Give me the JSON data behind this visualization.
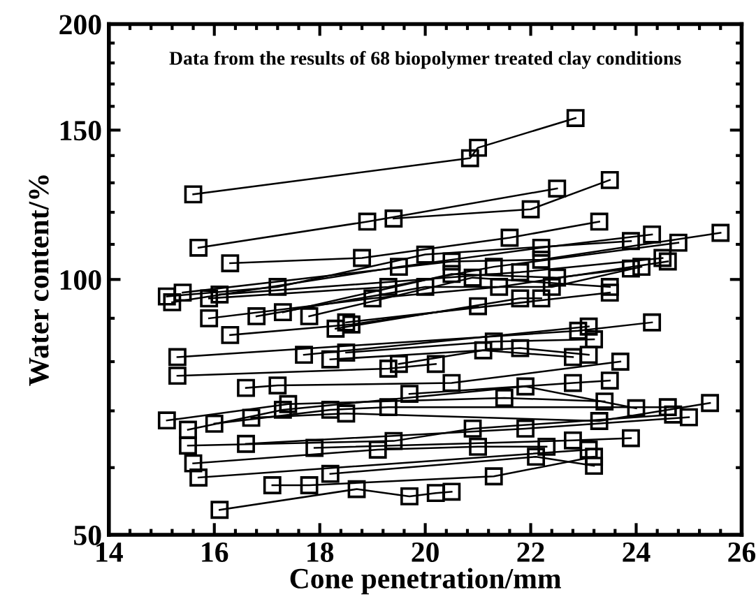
{
  "chart_data": {
    "type": "line",
    "xlabel": "Cone penetration/mm",
    "ylabel": "Water content/%",
    "annotations": [
      "Data from the results of 68 biopolymer treated clay conditions"
    ],
    "log": "y",
    "xlim": [
      14,
      26
    ],
    "xticks": [
      14,
      16,
      18,
      20,
      22,
      24,
      26
    ],
    "ylim": [
      50,
      200
    ],
    "yticks": [
      50,
      100,
      150,
      200
    ],
    "marker": "square",
    "line_style": "solid",
    "grid": false,
    "series": [
      {
        "color": "#000000",
        "x": [
          15.6,
          20.85,
          21.0,
          22.85
        ],
        "values": [
          126,
          139,
          143,
          155
        ]
      },
      {
        "color": "#000000",
        "x": [
          15.7,
          18.9,
          22.5
        ],
        "values": [
          109,
          117,
          128
        ]
      },
      {
        "color": "#000000",
        "x": [
          19.4,
          22.0,
          23.5
        ],
        "values": [
          118,
          121,
          131
        ]
      },
      {
        "color": "#000000",
        "x": [
          16.3,
          18.8,
          21.6,
          23.3
        ],
        "values": [
          104.5,
          106,
          112,
          117
        ]
      },
      {
        "color": "#000000",
        "x": [
          15.1,
          17.2,
          20.0,
          23.9
        ],
        "values": [
          95.5,
          98,
          107,
          111
        ]
      },
      {
        "color": "#000000",
        "x": [
          15.2,
          19.5,
          22.2,
          24.3
        ],
        "values": [
          94,
          103.5,
          109,
          113
        ]
      },
      {
        "color": "#000000",
        "x": [
          15.4,
          20.5,
          22.2,
          25.6
        ],
        "values": [
          96.5,
          105,
          105.5,
          113.5
        ]
      },
      {
        "color": "#000000",
        "x": [
          15.9,
          19.3,
          21.3,
          24.8
        ],
        "values": [
          95,
          98,
          103.5,
          110.5
        ]
      },
      {
        "color": "#000000",
        "x": [
          16.1,
          21.8,
          24.5
        ],
        "values": [
          96,
          102,
          106
        ]
      },
      {
        "color": "#000000",
        "x": [
          15.9,
          19.0,
          21.4,
          24.6
        ],
        "values": [
          90,
          95,
          98,
          105
        ]
      },
      {
        "color": "#000000",
        "x": [
          16.8,
          20.0,
          22.4,
          24.1
        ],
        "values": [
          90.5,
          98,
          98,
          103.5
        ]
      },
      {
        "color": "#000000",
        "x": [
          17.3,
          20.5,
          22.5,
          23.9
        ],
        "values": [
          91.5,
          101.5,
          100.5,
          103
        ]
      },
      {
        "color": "#000000",
        "x": [
          17.8,
          20.9,
          23.5
        ],
        "values": [
          90.5,
          100.5,
          98
        ]
      },
      {
        "color": "#000000",
        "x": [
          18.5,
          23.5
        ],
        "values": [
          89,
          96.5
        ]
      },
      {
        "color": "#000000",
        "x": [
          18.3,
          21.8,
          22.2
        ],
        "values": [
          87.5,
          95,
          95
        ]
      },
      {
        "color": "#000000",
        "x": [
          16.3,
          18.6,
          21.0
        ],
        "values": [
          86,
          88.5,
          93
        ]
      },
      {
        "color": "#000000",
        "x": [
          15.3,
          22.9,
          24.3
        ],
        "values": [
          81,
          87,
          89
        ]
      },
      {
        "color": "#000000",
        "x": [
          17.7,
          23.1
        ],
        "values": [
          81.5,
          88
        ]
      },
      {
        "color": "#000000",
        "x": [
          18.5,
          21.3,
          23.2
        ],
        "values": [
          82,
          84.5,
          85
        ]
      },
      {
        "color": "#000000",
        "x": [
          18.2,
          21.8,
          23.1
        ],
        "values": [
          80.5,
          83,
          81.5
        ]
      },
      {
        "color": "#000000",
        "x": [
          19.5,
          21.1,
          22.8
        ],
        "values": [
          79.5,
          82.5,
          81
        ]
      },
      {
        "color": "#000000",
        "x": [
          15.3,
          19.3,
          20.2
        ],
        "values": [
          77,
          78.5,
          79.5
        ]
      },
      {
        "color": "#000000",
        "x": [
          16.6,
          17.2,
          20.5,
          23.7
        ],
        "values": [
          74.5,
          75,
          75.5,
          80
        ]
      },
      {
        "color": "#000000",
        "x": [
          19.7,
          22.8,
          23.5
        ],
        "values": [
          73.3,
          75.5,
          76
        ]
      },
      {
        "color": "#000000",
        "x": [
          15.1,
          17.4,
          21.5,
          23.4
        ],
        "values": [
          68.2,
          71.3,
          72.5,
          71.8
        ]
      },
      {
        "color": "#000000",
        "x": [
          15.5,
          17.3,
          21.9,
          24.0
        ],
        "values": [
          66.5,
          70.2,
          74.8,
          70.5
        ]
      },
      {
        "color": "#000000",
        "x": [
          16.0,
          18.2,
          19.3,
          24.6
        ],
        "values": [
          67.6,
          70.2,
          70.7,
          70.7
        ]
      },
      {
        "color": "#000000",
        "x": [
          16.7,
          18.5,
          23.3,
          25.4
        ],
        "values": [
          68.7,
          69.5,
          68.1,
          71.5
        ]
      },
      {
        "color": "#000000",
        "x": [
          15.5,
          19.4,
          20.9,
          24.7
        ],
        "values": [
          63.7,
          64.5,
          66.7,
          69.3
        ]
      },
      {
        "color": "#000000",
        "x": [
          16.6,
          21.9,
          25.0
        ],
        "values": [
          64,
          66.7,
          68.8
        ]
      },
      {
        "color": "#000000",
        "x": [
          17.9,
          22.8,
          23.9
        ],
        "values": [
          63.3,
          64.6,
          65
        ]
      },
      {
        "color": "#000000",
        "x": [
          15.6,
          19.1,
          21.0,
          22.3
        ],
        "values": [
          60.7,
          63,
          63.5,
          63.5
        ]
      },
      {
        "color": "#000000",
        "x": [
          15.7,
          23.1
        ],
        "values": [
          58.4,
          63
        ]
      },
      {
        "color": "#000000",
        "x": [
          18.2,
          22.1,
          23.2
        ],
        "values": [
          59,
          61.8,
          60.3
        ]
      },
      {
        "color": "#000000",
        "x": [
          17.1,
          17.8,
          21.3,
          23.2
        ],
        "values": [
          57.2,
          57.2,
          58.6,
          61.8
        ]
      },
      {
        "color": "#000000",
        "x": [
          16.1,
          18.7,
          19.7,
          20.2,
          20.5
        ],
        "values": [
          53.5,
          56.6,
          55.5,
          56,
          56.2
        ]
      }
    ]
  }
}
